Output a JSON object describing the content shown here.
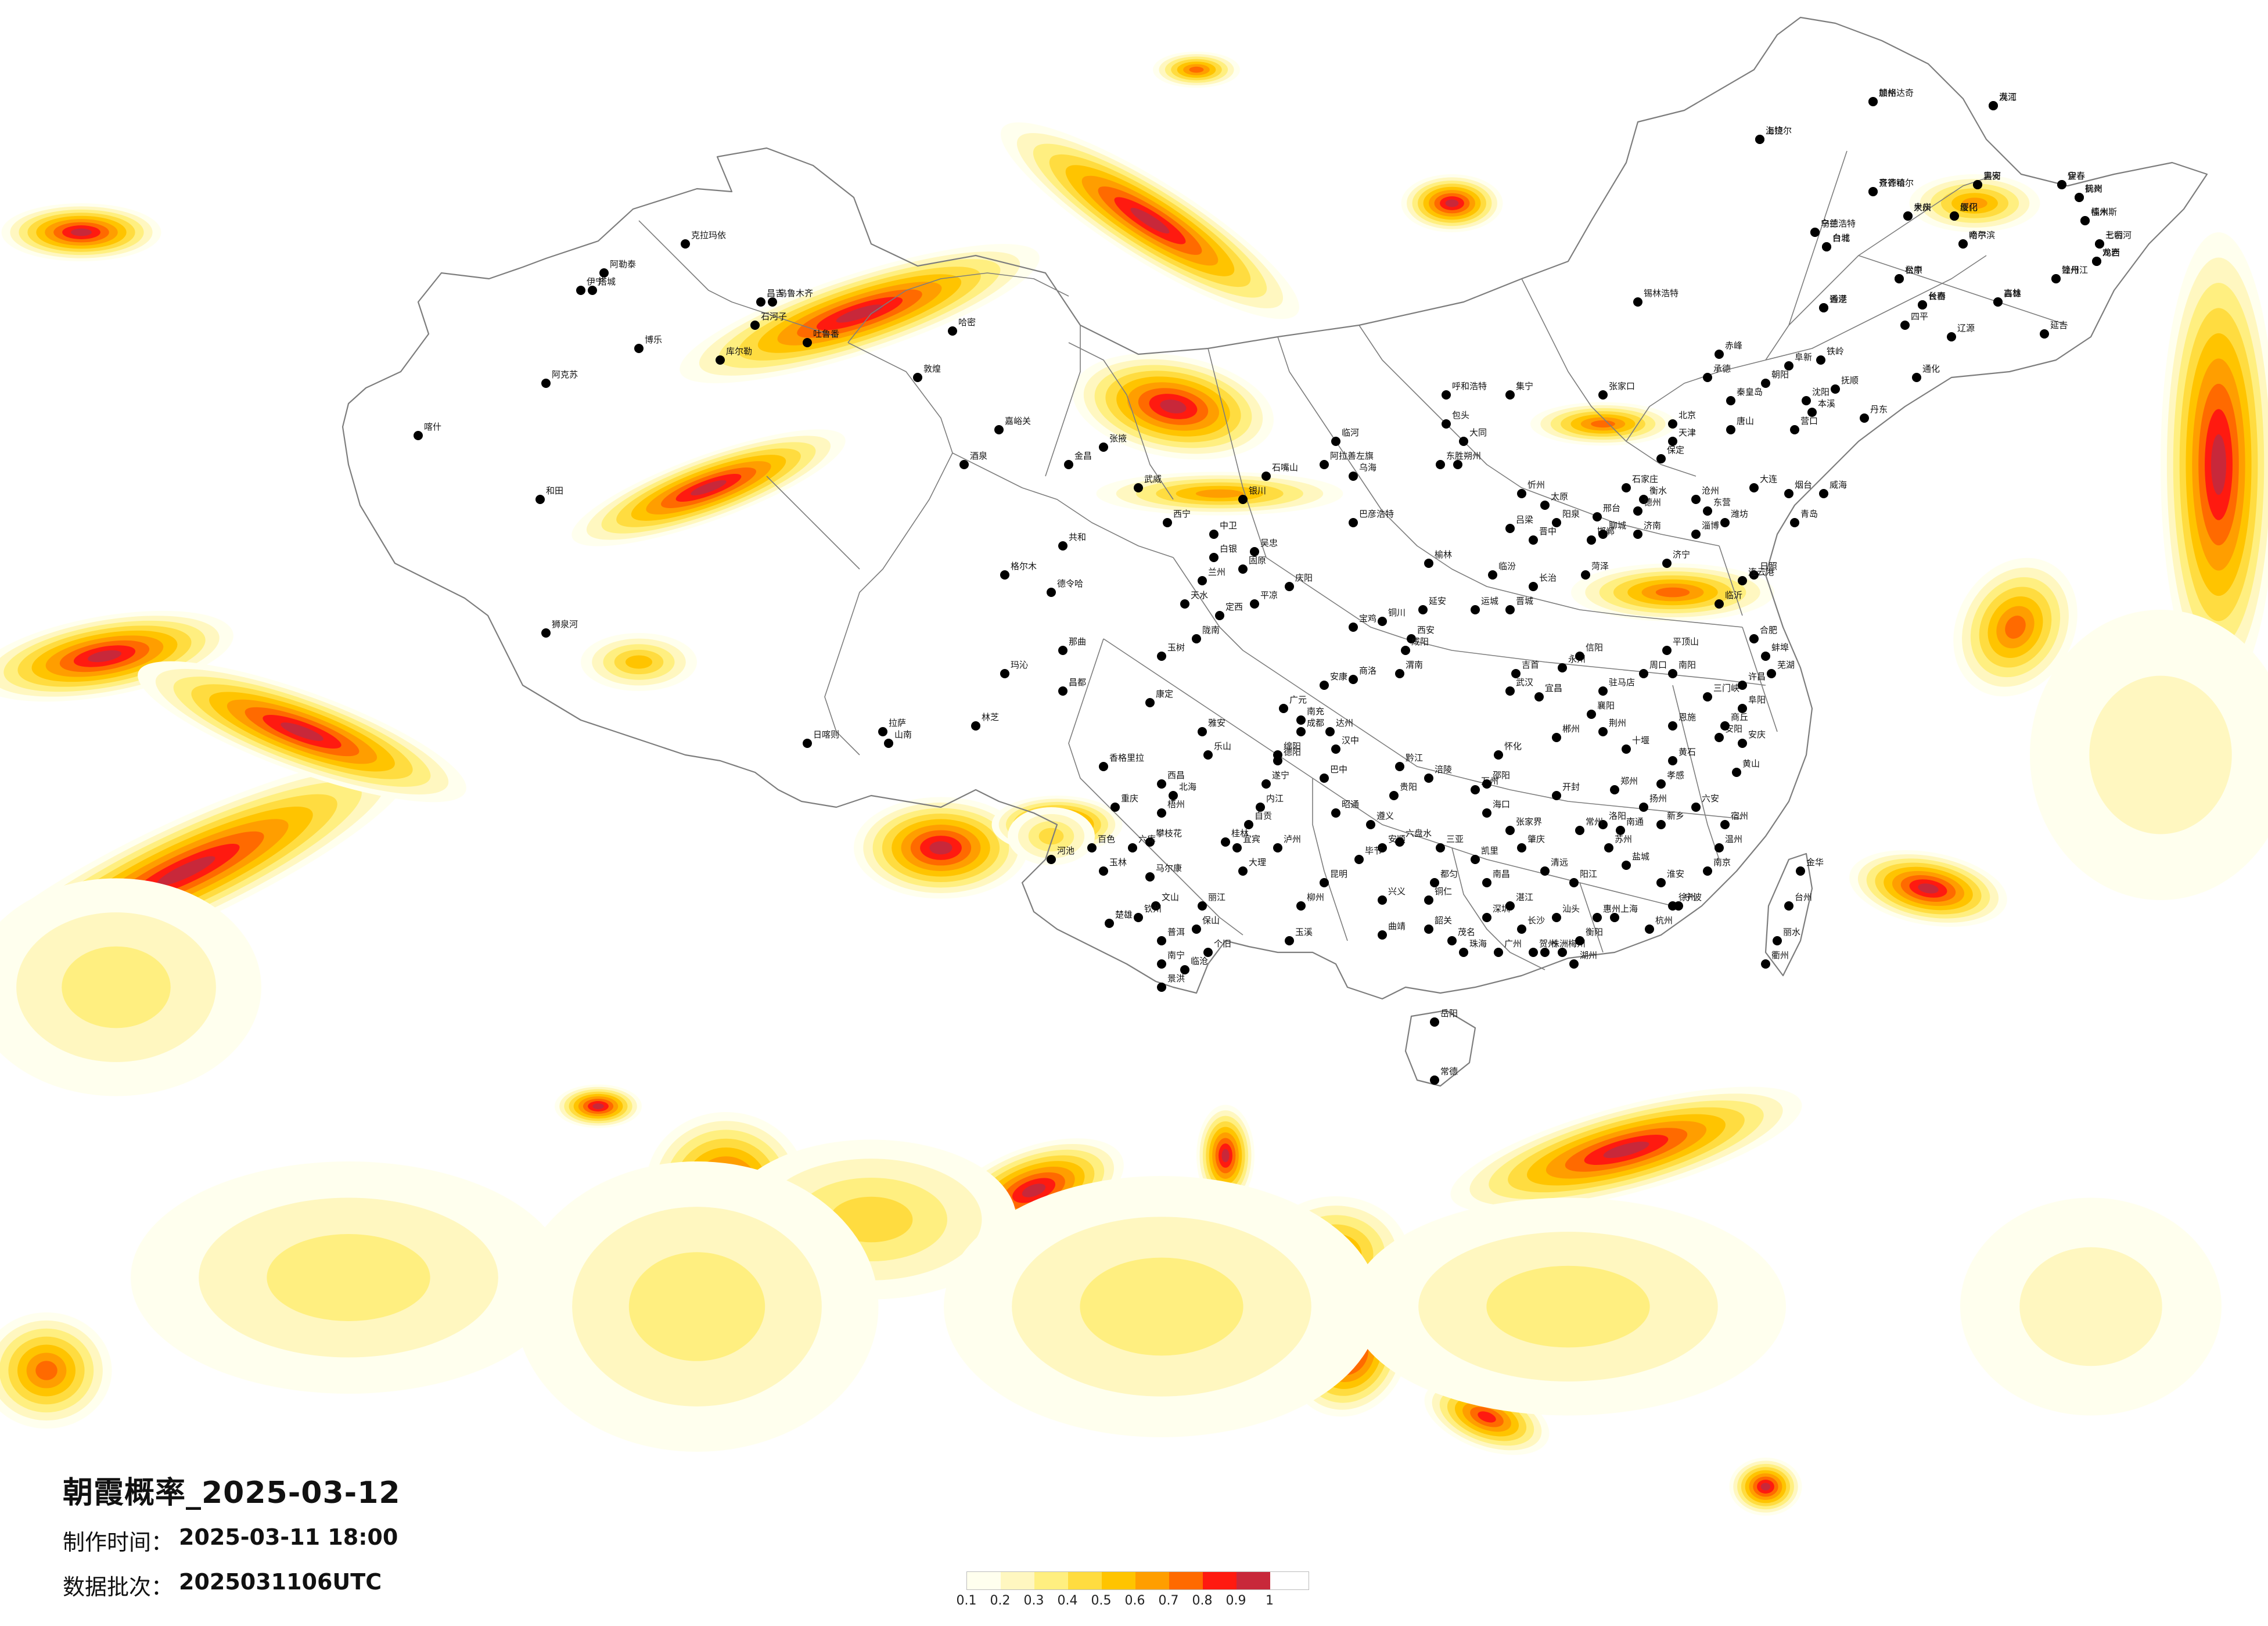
{
  "title": "朝霞概率_2025-03-12",
  "meta": {
    "make_time_label": "制作时间：",
    "make_time_value": "2025-03-11 18:00",
    "batch_label": "数据批次：",
    "batch_value": "2025031106UTC"
  },
  "legend": {
    "colors": [
      "#ffffee",
      "#fff7c0",
      "#ffef80",
      "#ffdc40",
      "#ffc400",
      "#ff9e00",
      "#ff6a00",
      "#ff1a10",
      "#c8283a"
    ],
    "ticks": [
      "0.1",
      "0.2",
      "0.3",
      "0.4",
      "0.5",
      "0.6",
      "0.7",
      "0.8",
      "0.9",
      "1"
    ]
  },
  "cities": [
    {
      "name": "漠河"
    },
    {
      "name": "加格达奇"
    },
    {
      "name": "海拉尔"
    },
    {
      "name": "黑河"
    },
    {
      "name": "伊春"
    },
    {
      "name": "鹤岗"
    },
    {
      "name": "齐齐哈尔"
    },
    {
      "name": "佳木斯"
    },
    {
      "name": "绥化"
    },
    {
      "name": "大庆"
    },
    {
      "name": "哈尔滨"
    },
    {
      "name": "七台河"
    },
    {
      "name": "鸡西"
    },
    {
      "name": "牡丹江"
    },
    {
      "name": "乌兰浩特"
    },
    {
      "name": "白城"
    },
    {
      "name": "松原"
    },
    {
      "name": "长春"
    },
    {
      "name": "吉林"
    },
    {
      "name": "通辽"
    },
    {
      "name": "四平"
    },
    {
      "name": "辽源"
    },
    {
      "name": "通化"
    },
    {
      "name": "延吉"
    },
    {
      "name": "锡林浩特"
    },
    {
      "name": "赤峰"
    },
    {
      "name": "朝阳"
    },
    {
      "name": "阜新"
    },
    {
      "name": "铁岭"
    },
    {
      "name": "沈阳"
    },
    {
      "name": "抚顺"
    },
    {
      "name": "本溪"
    },
    {
      "name": "丹东"
    },
    {
      "name": "营口"
    },
    {
      "name": "大连"
    },
    {
      "name": "秦皇岛"
    },
    {
      "name": "承德"
    },
    {
      "name": "唐山"
    },
    {
      "name": "北京"
    },
    {
      "name": "天津"
    },
    {
      "name": "张家口"
    },
    {
      "name": "保定"
    },
    {
      "name": "石家庄"
    },
    {
      "name": "衡水"
    },
    {
      "name": "沧州"
    },
    {
      "name": "邢台"
    },
    {
      "name": "邯郸"
    },
    {
      "name": "德州"
    },
    {
      "name": "济南"
    },
    {
      "name": "淄博"
    },
    {
      "name": "潍坊"
    },
    {
      "name": "烟台"
    },
    {
      "name": "威海"
    },
    {
      "name": "青岛"
    },
    {
      "name": "日照"
    },
    {
      "name": "临沂"
    },
    {
      "name": "连云港"
    },
    {
      "name": "东营"
    },
    {
      "name": "聊城"
    },
    {
      "name": "济宁"
    },
    {
      "name": "菏泽"
    },
    {
      "name": "呼和浩特"
    },
    {
      "name": "包头"
    },
    {
      "name": "集宁"
    },
    {
      "name": "东胜"
    },
    {
      "name": "临河"
    },
    {
      "name": "乌海"
    },
    {
      "name": "巴彦浩特"
    },
    {
      "name": "阿拉善左旗"
    },
    {
      "name": "大同"
    },
    {
      "name": "朔州"
    },
    {
      "name": "忻州"
    },
    {
      "name": "太原"
    },
    {
      "name": "阳泉"
    },
    {
      "name": "吕梁"
    },
    {
      "name": "晋中"
    },
    {
      "name": "长治"
    },
    {
      "name": "临汾"
    },
    {
      "name": "晋城"
    },
    {
      "name": "运城"
    },
    {
      "name": "榆林"
    },
    {
      "name": "延安"
    },
    {
      "name": "铜川"
    },
    {
      "name": "西安"
    },
    {
      "name": "宝鸡"
    },
    {
      "name": "咸阳"
    },
    {
      "name": "渭南"
    },
    {
      "name": "商洛"
    },
    {
      "name": "汉中"
    },
    {
      "name": "安康"
    },
    {
      "name": "银川"
    },
    {
      "name": "石嘴山"
    },
    {
      "name": "吴忠"
    },
    {
      "name": "中卫"
    },
    {
      "name": "固原"
    },
    {
      "name": "兰州"
    },
    {
      "name": "白银"
    },
    {
      "name": "天水"
    },
    {
      "name": "定西"
    },
    {
      "name": "平凉"
    },
    {
      "name": "庆阳"
    },
    {
      "name": "陇南"
    },
    {
      "name": "武威"
    },
    {
      "name": "金昌"
    },
    {
      "name": "张掖"
    },
    {
      "name": "酒泉"
    },
    {
      "name": "嘉峪关"
    },
    {
      "name": "敦煌"
    },
    {
      "name": "西宁"
    },
    {
      "name": "格尔木"
    },
    {
      "name": "德令哈"
    },
    {
      "name": "共和"
    },
    {
      "name": "玛沁"
    },
    {
      "name": "玉树"
    },
    {
      "name": "乌鲁木齐"
    },
    {
      "name": "昌吉"
    },
    {
      "name": "石河子"
    },
    {
      "name": "克拉玛依"
    },
    {
      "name": "伊宁"
    },
    {
      "name": "博乐"
    },
    {
      "name": "吐鲁番"
    },
    {
      "name": "哈密"
    },
    {
      "name": "库尔勒"
    },
    {
      "name": "阿克苏"
    },
    {
      "name": "喀什"
    },
    {
      "name": "和田"
    },
    {
      "name": "阿勒泰"
    },
    {
      "name": "塔城"
    },
    {
      "name": "狮泉河"
    },
    {
      "name": "拉萨"
    },
    {
      "name": "日喀则"
    },
    {
      "name": "山南"
    },
    {
      "name": "林芝"
    },
    {
      "name": "昌都"
    },
    {
      "name": "那曲"
    },
    {
      "name": "成都"
    },
    {
      "name": "绵阳"
    },
    {
      "name": "德阳"
    },
    {
      "name": "广元"
    },
    {
      "name": "南充"
    },
    {
      "name": "达州"
    },
    {
      "name": "巴中"
    },
    {
      "name": "遂宁"
    },
    {
      "name": "内江"
    },
    {
      "name": "自贡"
    },
    {
      "name": "宜宾"
    },
    {
      "name": "泸州"
    },
    {
      "name": "乐山"
    },
    {
      "name": "雅安"
    },
    {
      "name": "康定"
    },
    {
      "name": "西昌"
    },
    {
      "name": "攀枝花"
    },
    {
      "name": "马尔康"
    },
    {
      "name": "重庆"
    },
    {
      "name": "万州"
    },
    {
      "name": "涪陵"
    },
    {
      "name": "黔江"
    },
    {
      "name": "贵阳"
    },
    {
      "name": "遵义"
    },
    {
      "name": "安顺"
    },
    {
      "name": "毕节"
    },
    {
      "name": "六盘水"
    },
    {
      "name": "凯里"
    },
    {
      "name": "都匀"
    },
    {
      "name": "铜仁"
    },
    {
      "name": "兴义"
    },
    {
      "name": "昆明"
    },
    {
      "name": "曲靖"
    },
    {
      "name": "玉溪"
    },
    {
      "name": "昭通"
    },
    {
      "name": "大理"
    },
    {
      "name": "丽江"
    },
    {
      "name": "保山"
    },
    {
      "name": "临沧"
    },
    {
      "name": "普洱"
    },
    {
      "name": "景洪"
    },
    {
      "name": "个旧"
    },
    {
      "name": "文山"
    },
    {
      "name": "楚雄"
    },
    {
      "name": "香格里拉"
    },
    {
      "name": "六库"
    },
    {
      "name": "南宁"
    },
    {
      "name": "柳州"
    },
    {
      "name": "桂林"
    },
    {
      "name": "梧州"
    },
    {
      "name": "北海"
    },
    {
      "name": "钦州"
    },
    {
      "name": "玉林"
    },
    {
      "name": "百色"
    },
    {
      "name": "河池"
    },
    {
      "name": "贺州"
    },
    {
      "name": "广州"
    },
    {
      "name": "深圳"
    },
    {
      "name": "珠海"
    },
    {
      "name": "汕头"
    },
    {
      "name": "湛江"
    },
    {
      "name": "茂名"
    },
    {
      "name": "韶关"
    },
    {
      "name": "梅州"
    },
    {
      "name": "惠州"
    },
    {
      "name": "阳江"
    },
    {
      "name": "清远"
    },
    {
      "name": "肇庆"
    },
    {
      "name": "海口"
    },
    {
      "name": "三亚"
    },
    {
      "name": "长沙"
    },
    {
      "name": "株洲"
    },
    {
      "name": "衡阳"
    },
    {
      "name": "岳阳"
    },
    {
      "name": "常德"
    },
    {
      "name": "张家界"
    },
    {
      "name": "邵阳"
    },
    {
      "name": "怀化"
    },
    {
      "name": "郴州"
    },
    {
      "name": "永州"
    },
    {
      "name": "吉首"
    },
    {
      "name": "武汉"
    },
    {
      "name": "宜昌"
    },
    {
      "name": "襄阳"
    },
    {
      "name": "十堰"
    },
    {
      "name": "荆州"
    },
    {
      "name": "恩施"
    },
    {
      "name": "黄石"
    },
    {
      "name": "孝感"
    },
    {
      "name": "郑州"
    },
    {
      "name": "洛阳"
    },
    {
      "name": "开封"
    },
    {
      "name": "新乡"
    },
    {
      "name": "安阳"
    },
    {
      "name": "南阳"
    },
    {
      "name": "信阳"
    },
    {
      "name": "驻马店"
    },
    {
      "name": "周口"
    },
    {
      "name": "商丘"
    },
    {
      "name": "许昌"
    },
    {
      "name": "平顶山"
    },
    {
      "name": "三门峡"
    },
    {
      "name": "合肥"
    },
    {
      "name": "蚌埠"
    },
    {
      "name": "阜阳"
    },
    {
      "name": "安庆"
    },
    {
      "name": "芜湖"
    },
    {
      "name": "黄山"
    },
    {
      "name": "六安"
    },
    {
      "name": "宿州"
    },
    {
      "name": "南京"
    },
    {
      "name": "徐州"
    },
    {
      "name": "盐城"
    },
    {
      "name": "扬州"
    },
    {
      "name": "南通"
    },
    {
      "name": "苏州"
    },
    {
      "name": "常州"
    },
    {
      "name": "淮安"
    },
    {
      "name": "上海"
    },
    {
      "name": "杭州"
    },
    {
      "name": "宁波"
    },
    {
      "name": "温州"
    },
    {
      "name": "金华"
    },
    {
      "name": "台州"
    },
    {
      "name": "丽水"
    },
    {
      "name": "衢州"
    },
    {
      "name": "湖州"
    },
    {
      "name": "南昌"
    },
    {
      "name": "九江"
    },
    {
      "name": "赣州"
    },
    {
      "name": "上饶"
    },
    {
      "name": "吉安"
    },
    {
      "name": "宜春"
    },
    {
      "name": "抚州"
    },
    {
      "name": "景德镇"
    },
    {
      "name": "福州"
    },
    {
      "name": "厦门"
    },
    {
      "name": "泉州"
    },
    {
      "name": "南平"
    },
    {
      "name": "三明"
    },
    {
      "name": "龙岩"
    },
    {
      "name": "漳州"
    },
    {
      "name": "宁德"
    },
    {
      "name": "台北"
    },
    {
      "name": "台中"
    },
    {
      "name": "台南"
    },
    {
      "name": "高雄"
    },
    {
      "name": "香港"
    }
  ]
}
